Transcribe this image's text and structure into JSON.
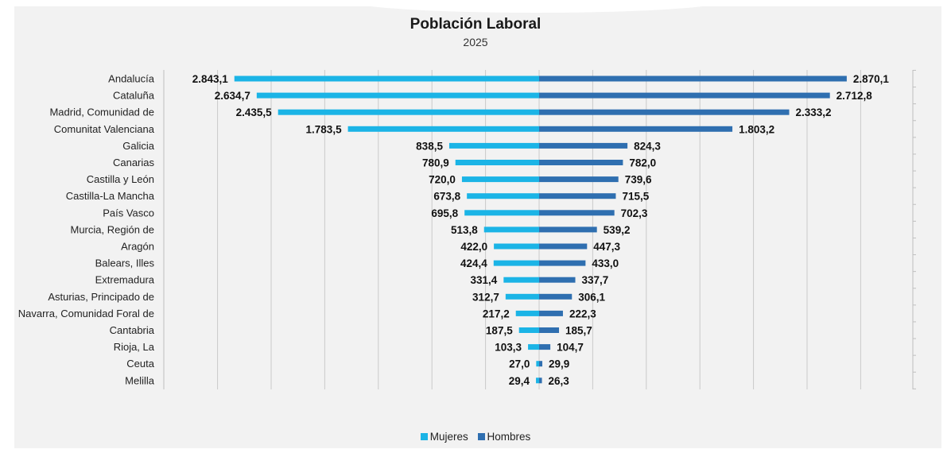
{
  "chart_data": {
    "type": "bar",
    "title": "Población Laboral",
    "subtitle": "2025",
    "categories": [
      "Andalucía",
      "Cataluña",
      "Madrid, Comunidad de",
      "Comunitat Valenciana",
      "Galicia",
      "Canarias",
      "Castilla y León",
      "Castilla-La Mancha",
      "País Vasco",
      "Murcia, Región de",
      "Aragón",
      "Balears, Illes",
      "Extremadura",
      "Asturias, Principado de",
      "Navarra, Comunidad Foral de",
      "Cantabria",
      "Rioja, La",
      "Ceuta",
      "Melilla"
    ],
    "series": [
      {
        "name": "Mujeres",
        "color": "#1bb4e6",
        "values": [
          2843.1,
          2634.7,
          2435.5,
          1783.5,
          838.5,
          780.9,
          720.0,
          673.8,
          695.8,
          513.8,
          422.0,
          424.4,
          331.4,
          312.7,
          217.2,
          187.5,
          103.3,
          27.0,
          29.4
        ],
        "labels": [
          "2.843,1",
          "2.634,7",
          "2.435,5",
          "1.783,5",
          "838,5",
          "780,9",
          "720,0",
          "673,8",
          "695,8",
          "513,8",
          "422,0",
          "424,4",
          "331,4",
          "312,7",
          "217,2",
          "187,5",
          "103,3",
          "27,0",
          "29,4"
        ]
      },
      {
        "name": "Hombres",
        "color": "#2f6fb0",
        "values": [
          2870.1,
          2712.8,
          2333.2,
          1803.2,
          824.3,
          782.0,
          739.6,
          715.5,
          702.3,
          539.2,
          447.3,
          433.0,
          337.7,
          306.1,
          222.3,
          185.7,
          104.7,
          29.9,
          26.3
        ],
        "labels": [
          "2.870,1",
          "2.712,8",
          "2.333,2",
          "1.803,2",
          "824,3",
          "782,0",
          "739,6",
          "715,5",
          "702,3",
          "539,2",
          "447,3",
          "433,0",
          "337,7",
          "306,1",
          "222,3",
          "185,7",
          "104,7",
          "29,9",
          "26,3"
        ]
      }
    ],
    "orientation": "horizontal-diverging",
    "xlim": [
      -3000,
      3500
    ],
    "gridline_step": 500,
    "grid": true,
    "legend": "bottom"
  }
}
